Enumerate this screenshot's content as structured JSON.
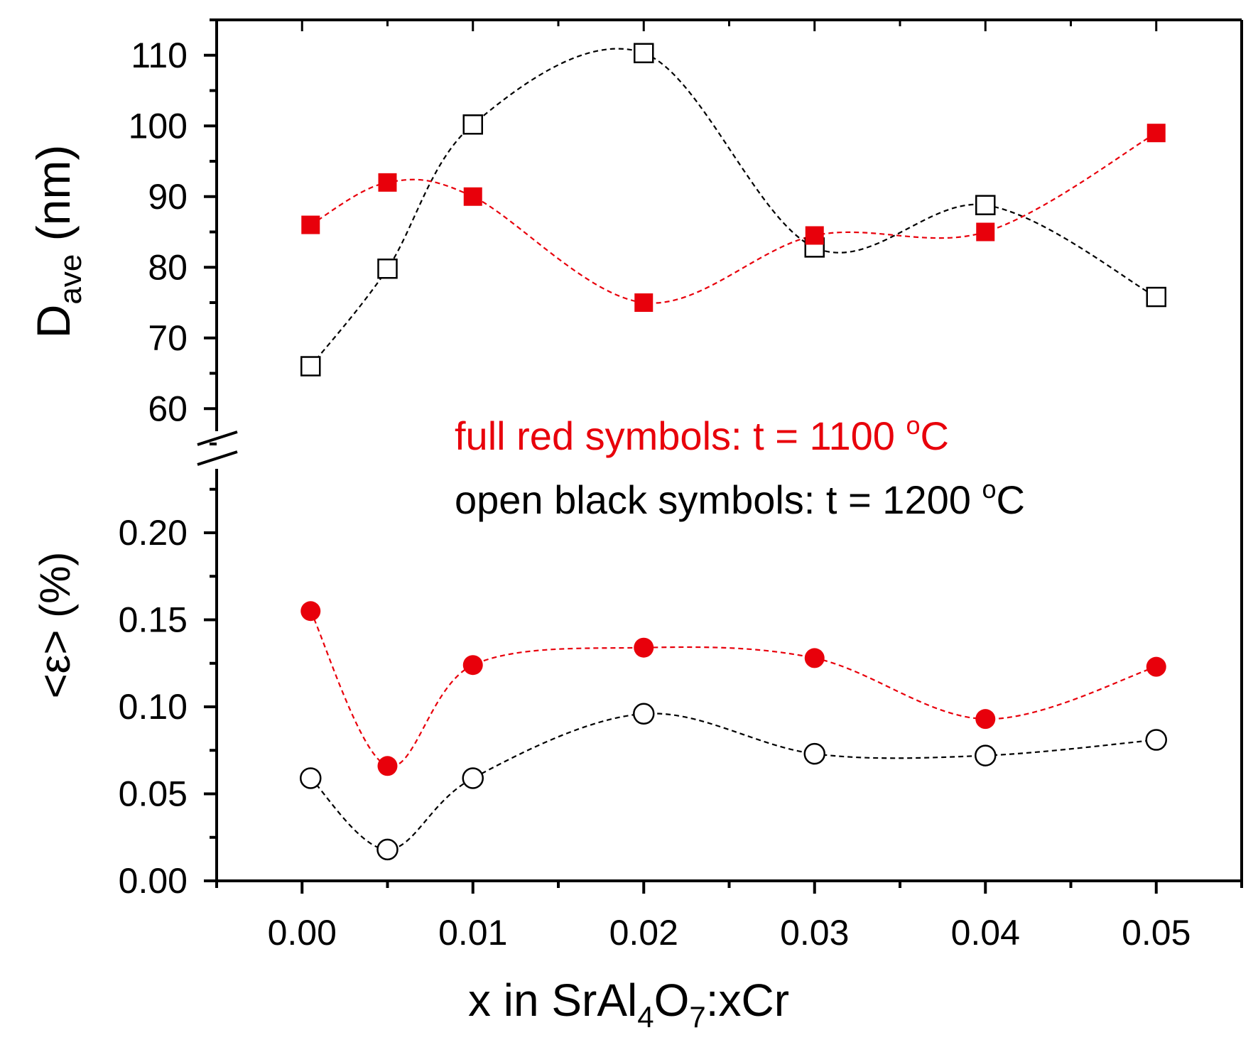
{
  "chart_data": {
    "type": "scatter",
    "xlabel": {
      "prefix": "x in SrAl",
      "sub1": "4",
      "mid": "O",
      "sub2": "7",
      "suffix": ":xCr"
    },
    "x_ticks": [
      "0.00",
      "0.01",
      "0.02",
      "0.03",
      "0.04",
      "0.05"
    ],
    "xlim": [
      -0.005,
      0.055
    ],
    "upper_panel": {
      "ylabel": {
        "main": "D",
        "sub": "ave",
        "unit": " (nm)"
      },
      "ylim": [
        55,
        115
      ],
      "y_ticks": [
        "60",
        "70",
        "80",
        "90",
        "100",
        "110"
      ],
      "series": [
        {
          "name": "t = 1100 °C",
          "color": "#e8000b",
          "marker": "square-filled",
          "x": [
            0.0005,
            0.005,
            0.01,
            0.02,
            0.03,
            0.04,
            0.05
          ],
          "y": [
            86,
            92,
            90,
            75,
            84.5,
            85,
            99
          ]
        },
        {
          "name": "t = 1200 °C",
          "color": "#000000",
          "marker": "square-open",
          "x": [
            0.0005,
            0.005,
            0.01,
            0.02,
            0.03,
            0.04,
            0.05
          ],
          "y": [
            66,
            79.8,
            100.2,
            110.3,
            82.8,
            88.8,
            75.8
          ]
        }
      ]
    },
    "lower_panel": {
      "ylabel": "<ε> (%)",
      "ylim": [
        0,
        0.24
      ],
      "y_ticks": [
        "0.00",
        "0.05",
        "0.10",
        "0.15",
        "0.20"
      ],
      "series": [
        {
          "name": "t = 1100 °C",
          "color": "#e8000b",
          "marker": "circle-filled",
          "x": [
            0.0005,
            0.005,
            0.01,
            0.02,
            0.03,
            0.04,
            0.05
          ],
          "y": [
            0.155,
            0.066,
            0.124,
            0.134,
            0.128,
            0.093,
            0.123
          ]
        },
        {
          "name": "t = 1200 °C",
          "color": "#000000",
          "marker": "circle-open",
          "x": [
            0.0005,
            0.005,
            0.01,
            0.02,
            0.03,
            0.04,
            0.05
          ],
          "y": [
            0.059,
            0.018,
            0.059,
            0.096,
            0.073,
            0.072,
            0.081
          ]
        }
      ]
    },
    "legend": {
      "red": {
        "text": "full red symbols: t = 1100 ",
        "sup": "o",
        "unit": "C",
        "color": "#e8000b"
      },
      "black": {
        "text": "open black symbols: t = 1200 ",
        "sup": "o",
        "unit": "C",
        "color": "#000000"
      }
    }
  }
}
